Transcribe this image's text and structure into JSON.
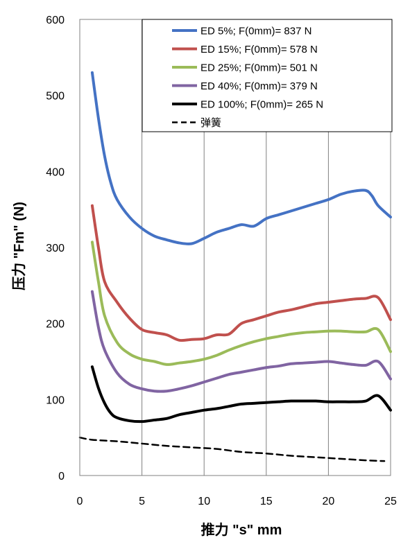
{
  "chart_data": {
    "type": "line",
    "title": "",
    "xlabel": "推力 \"s\" mm",
    "ylabel": "压力 \"Fm\" (N)",
    "xlim": [
      0,
      25
    ],
    "ylim": [
      0,
      600
    ],
    "xticks": [
      0,
      5,
      10,
      15,
      20,
      25
    ],
    "yticks": [
      0,
      100,
      200,
      300,
      400,
      500,
      600
    ],
    "grid": "vertical",
    "legend_position": "top-right",
    "series": [
      {
        "name": "ED 5%; F(0mm)= 837 N",
        "color": "#4472C4",
        "dash": "solid",
        "points": [
          [
            1,
            530
          ],
          [
            1.5,
            470
          ],
          [
            2,
            420
          ],
          [
            2.5,
            385
          ],
          [
            3,
            363
          ],
          [
            4,
            340
          ],
          [
            5,
            325
          ],
          [
            6,
            315
          ],
          [
            7,
            310
          ],
          [
            8,
            306
          ],
          [
            9,
            305
          ],
          [
            10,
            312
          ],
          [
            11,
            320
          ],
          [
            12,
            325
          ],
          [
            13,
            330
          ],
          [
            14,
            328
          ],
          [
            15,
            338
          ],
          [
            16,
            343
          ],
          [
            17,
            348
          ],
          [
            18,
            353
          ],
          [
            19,
            358
          ],
          [
            20,
            363
          ],
          [
            21,
            370
          ],
          [
            22,
            374
          ],
          [
            23,
            375
          ],
          [
            23.5,
            368
          ],
          [
            24,
            355
          ],
          [
            25,
            340
          ]
        ]
      },
      {
        "name": "ED 15%; F(0mm)= 578 N",
        "color": "#C0504D",
        "dash": "solid",
        "points": [
          [
            1,
            355
          ],
          [
            1.5,
            300
          ],
          [
            2,
            255
          ],
          [
            3,
            228
          ],
          [
            4,
            207
          ],
          [
            5,
            192
          ],
          [
            6,
            188
          ],
          [
            7,
            185
          ],
          [
            8,
            178
          ],
          [
            9,
            179
          ],
          [
            10,
            180
          ],
          [
            11,
            185
          ],
          [
            12,
            186
          ],
          [
            13,
            200
          ],
          [
            14,
            205
          ],
          [
            15,
            210
          ],
          [
            16,
            215
          ],
          [
            17,
            218
          ],
          [
            18,
            222
          ],
          [
            19,
            226
          ],
          [
            20,
            228
          ],
          [
            21,
            230
          ],
          [
            22,
            232
          ],
          [
            23,
            233
          ],
          [
            24,
            234
          ],
          [
            25,
            205
          ]
        ]
      },
      {
        "name": "ED 25%; F(0mm)= 501 N",
        "color": "#9BBB59",
        "dash": "solid",
        "points": [
          [
            1,
            307
          ],
          [
            1.5,
            255
          ],
          [
            2,
            210
          ],
          [
            3,
            175
          ],
          [
            4,
            160
          ],
          [
            5,
            153
          ],
          [
            6,
            150
          ],
          [
            7,
            146
          ],
          [
            8,
            148
          ],
          [
            9,
            150
          ],
          [
            10,
            153
          ],
          [
            11,
            158
          ],
          [
            12,
            165
          ],
          [
            13,
            171
          ],
          [
            14,
            176
          ],
          [
            15,
            180
          ],
          [
            16,
            183
          ],
          [
            17,
            186
          ],
          [
            18,
            188
          ],
          [
            19,
            189
          ],
          [
            20,
            190
          ],
          [
            21,
            190
          ],
          [
            22,
            189
          ],
          [
            23,
            189
          ],
          [
            24,
            192
          ],
          [
            25,
            163
          ]
        ]
      },
      {
        "name": "ED 40%; F(0mm)= 379 N",
        "color": "#8064A2",
        "dash": "solid",
        "points": [
          [
            1,
            242
          ],
          [
            1.5,
            195
          ],
          [
            2,
            165
          ],
          [
            3,
            135
          ],
          [
            4,
            120
          ],
          [
            5,
            114
          ],
          [
            6,
            111
          ],
          [
            7,
            111
          ],
          [
            8,
            114
          ],
          [
            9,
            118
          ],
          [
            10,
            123
          ],
          [
            11,
            128
          ],
          [
            12,
            133
          ],
          [
            13,
            136
          ],
          [
            14,
            139
          ],
          [
            15,
            142
          ],
          [
            16,
            144
          ],
          [
            17,
            147
          ],
          [
            18,
            148
          ],
          [
            19,
            149
          ],
          [
            20,
            150
          ],
          [
            21,
            148
          ],
          [
            22,
            146
          ],
          [
            23,
            145
          ],
          [
            24,
            150
          ],
          [
            25,
            127
          ]
        ]
      },
      {
        "name": "ED 100%; F(0mm)= 265 N",
        "color": "#000000",
        "dash": "solid",
        "points": [
          [
            1,
            143
          ],
          [
            1.5,
            115
          ],
          [
            2,
            95
          ],
          [
            2.5,
            82
          ],
          [
            3,
            76
          ],
          [
            4,
            72
          ],
          [
            5,
            71
          ],
          [
            6,
            73
          ],
          [
            7,
            75
          ],
          [
            8,
            80
          ],
          [
            9,
            83
          ],
          [
            10,
            86
          ],
          [
            11,
            88
          ],
          [
            12,
            91
          ],
          [
            13,
            94
          ],
          [
            14,
            95
          ],
          [
            15,
            96
          ],
          [
            16,
            97
          ],
          [
            17,
            98
          ],
          [
            18,
            98
          ],
          [
            19,
            98
          ],
          [
            20,
            97
          ],
          [
            21,
            97
          ],
          [
            22,
            97
          ],
          [
            23,
            98
          ],
          [
            24,
            105
          ],
          [
            25,
            86
          ]
        ]
      },
      {
        "name": "弹簧",
        "color": "#000000",
        "dash": "dashed",
        "points": [
          [
            0,
            50
          ],
          [
            1,
            47
          ],
          [
            3,
            45
          ],
          [
            5,
            42
          ],
          [
            7,
            39
          ],
          [
            9,
            37
          ],
          [
            11,
            35
          ],
          [
            13,
            31
          ],
          [
            15,
            29
          ],
          [
            17,
            26
          ],
          [
            19,
            24
          ],
          [
            21,
            22
          ],
          [
            23,
            20
          ],
          [
            24.5,
            19
          ]
        ]
      }
    ]
  }
}
